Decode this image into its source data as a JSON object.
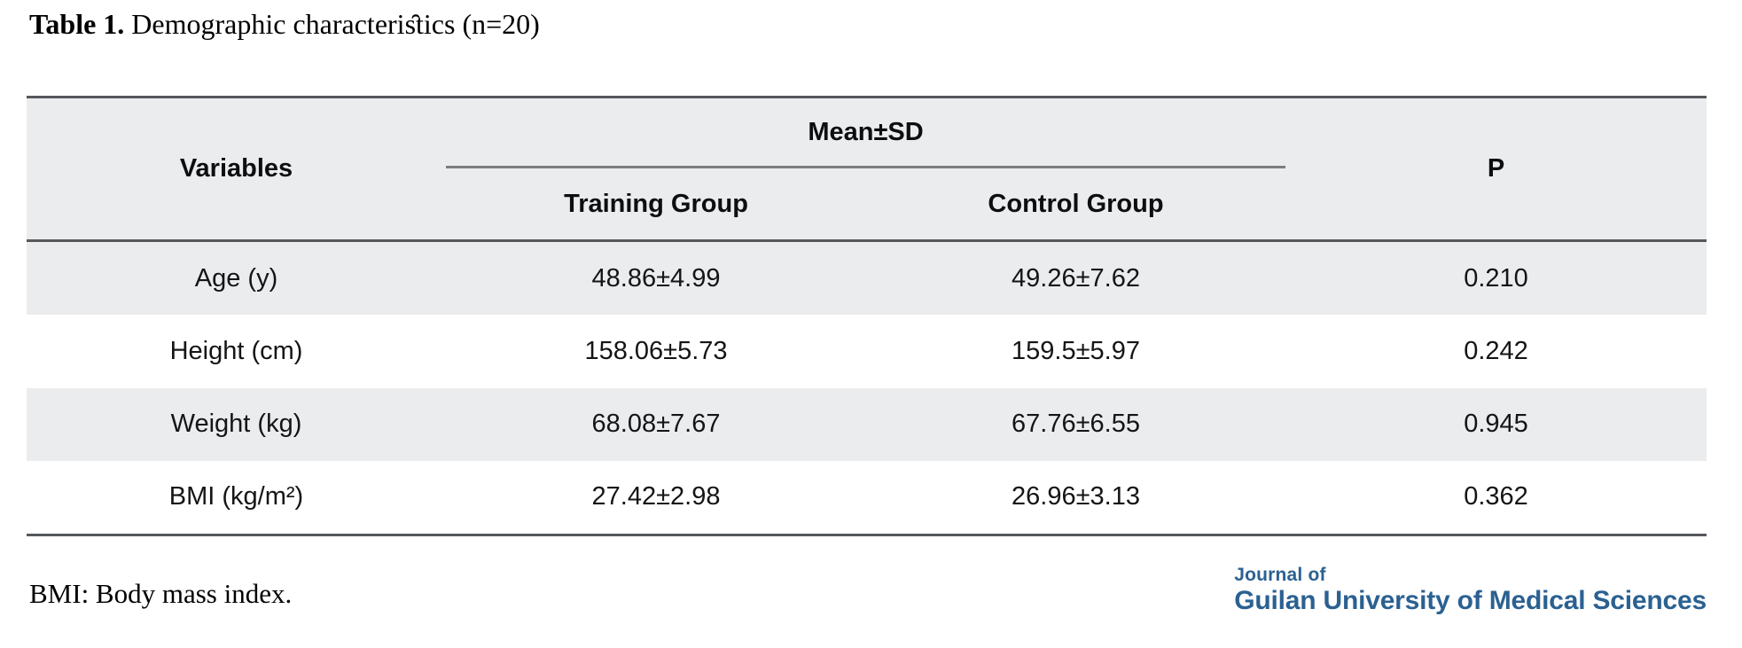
{
  "caption": {
    "label": "Table 1.",
    "text": " Demographic characteris̑tics (n=20)"
  },
  "table": {
    "header": {
      "variables": "Variables",
      "mean_sd": "Mean±SD",
      "training_group": "Training Group",
      "control_group": "Control Group",
      "p": "P"
    },
    "rows": [
      {
        "variable": "Age (y)",
        "training": "48.86±4.99",
        "control": "49.26±7.62",
        "p": "0.210"
      },
      {
        "variable": "Height (cm)",
        "training": "158.06±5.73",
        "control": "159.5±5.97",
        "p": "0.242"
      },
      {
        "variable": "Weight (kg)",
        "training": "68.08±7.67",
        "control": "67.76±6.55",
        "p": "0.945"
      },
      {
        "variable": "BMI (kg/m²)",
        "training": "27.42±2.98",
        "control": "26.96±3.13",
        "p": "0.362"
      }
    ],
    "colors": {
      "header_fill": "#ebeced",
      "stripe_fill": "#ebeced",
      "border_dark": "#56585c",
      "span_divider": "#7b7d80"
    }
  },
  "footnote": "BMI: Body mass index.",
  "logo": {
    "line1": "Journal of",
    "line2": "Guilan University of Medical Sciences",
    "color": "#2b6191"
  }
}
